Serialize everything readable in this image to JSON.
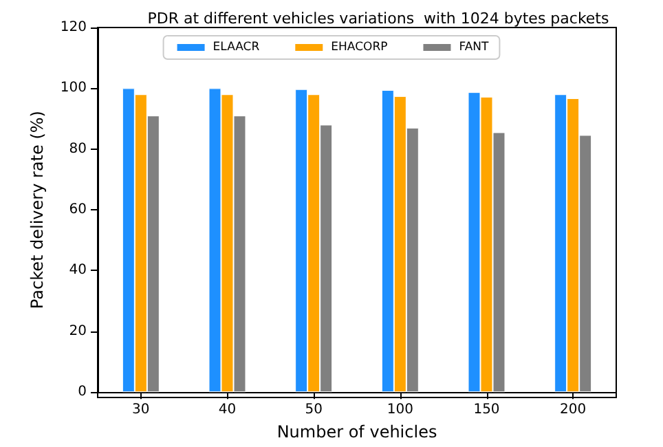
{
  "chart_data": {
    "type": "bar",
    "title": "PDR at different vehicles variations  with 1024 bytes packets",
    "xlabel": "Number of vehicles",
    "ylabel": "Packet delivery rate (%)",
    "categories": [
      "30",
      "40",
      "50",
      "100",
      "150",
      "200"
    ],
    "series": [
      {
        "name": "ELAACR",
        "color": "#1e90ff",
        "values": [
          100,
          100,
          99.7,
          99.4,
          98.7,
          98
        ]
      },
      {
        "name": "EHACORP",
        "color": "#ffa500",
        "values": [
          98,
          98,
          98,
          97.4,
          97.2,
          96.7
        ]
      },
      {
        "name": "FANT",
        "color": "#808080",
        "values": [
          91,
          91,
          88,
          87,
          85.5,
          84.6
        ]
      }
    ],
    "ylim": [
      0,
      120
    ],
    "yticks": [
      0,
      20,
      40,
      60,
      80,
      100,
      120
    ],
    "grid": false,
    "legend": "top"
  }
}
